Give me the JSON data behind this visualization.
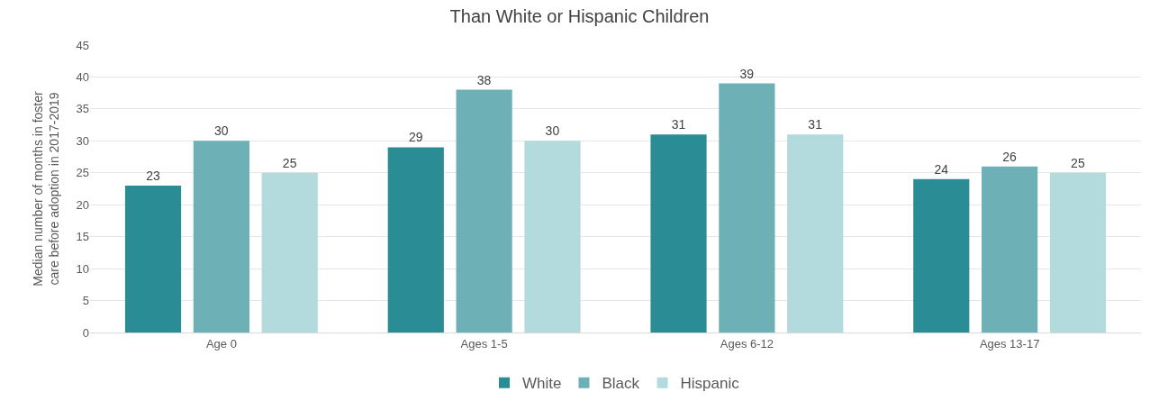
{
  "chart_data": {
    "type": "bar",
    "title": "Than White or Hispanic Children",
    "ylabel": "Median number of months in foster care before adoption in 2017-2019",
    "categories": [
      "Age 0",
      "Ages 1-5",
      "Ages 6-12",
      "Ages 13-17"
    ],
    "series": [
      {
        "name": "White",
        "color": "#2a8c94",
        "values": [
          23,
          29,
          31,
          24
        ]
      },
      {
        "name": "Black",
        "color": "#6db1b7",
        "values": [
          30,
          38,
          39,
          26
        ]
      },
      {
        "name": "Hispanic",
        "color": "#b3dadc",
        "values": [
          25,
          30,
          31,
          25
        ]
      }
    ],
    "ylim": [
      0,
      45
    ],
    "yticks": [
      0,
      5,
      10,
      15,
      20,
      25,
      30,
      35,
      40,
      45
    ],
    "grid": "y",
    "legend": "bottom",
    "data_labels": true
  }
}
